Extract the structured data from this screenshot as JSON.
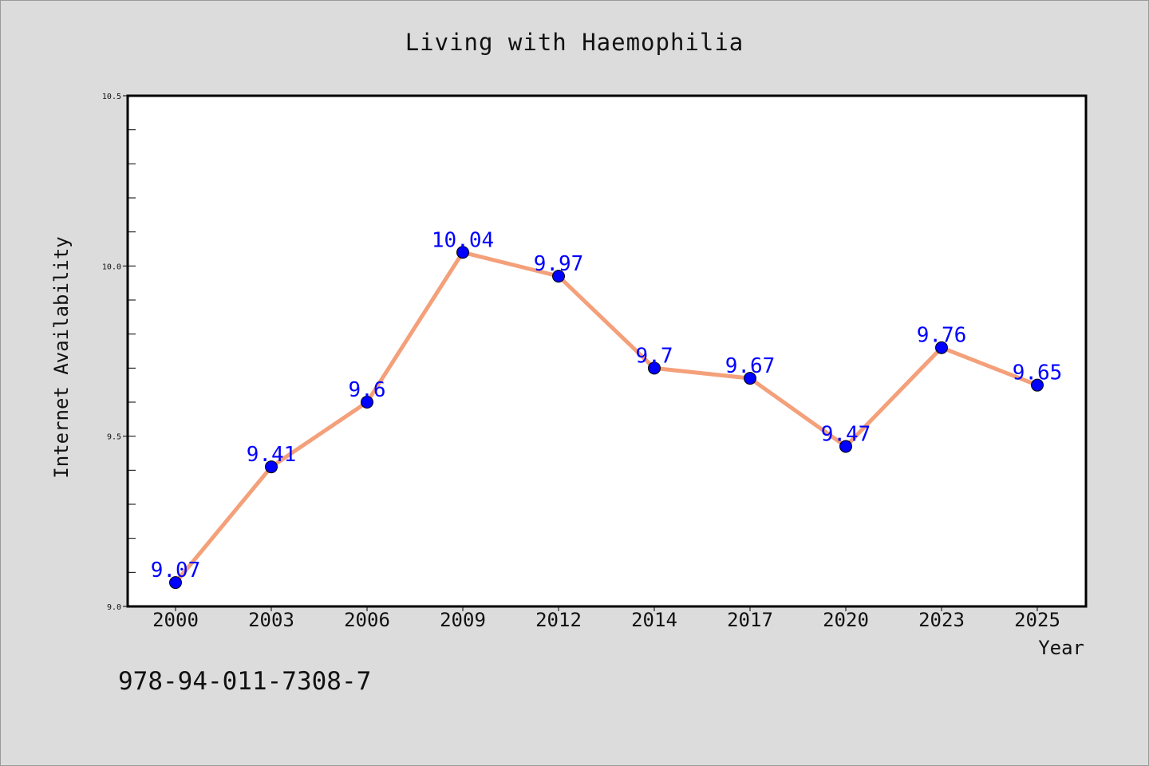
{
  "chart_data": {
    "type": "line",
    "title": "Living with Haemophilia",
    "xlabel": "Year",
    "ylabel": "Internet Availability",
    "categories": [
      "2000",
      "2003",
      "2006",
      "2009",
      "2012",
      "2014",
      "2017",
      "2020",
      "2023",
      "2025"
    ],
    "series": [
      {
        "values": [
          9.07,
          9.41,
          9.6,
          10.04,
          9.97,
          9.7,
          9.67,
          9.47,
          9.76,
          9.65
        ],
        "labels": [
          "9.07",
          "9.41",
          "9.6",
          "10.04",
          "9.97",
          "9.7",
          "9.67",
          "9.47",
          "9.76",
          "9.65"
        ],
        "line_color": "#f4a07a",
        "marker_color": "#0000ff"
      }
    ],
    "ylim": [
      9.0,
      10.5
    ],
    "yticks": [
      "9.0",
      "9.5",
      "10.0",
      "10.5"
    ],
    "grid": false,
    "legend": "none"
  },
  "footer": {
    "code": "978-94-011-7308-7"
  },
  "colors": {
    "background": "#dcdcdc",
    "plot_background": "#ffffff",
    "label_color": "#0000ff"
  }
}
